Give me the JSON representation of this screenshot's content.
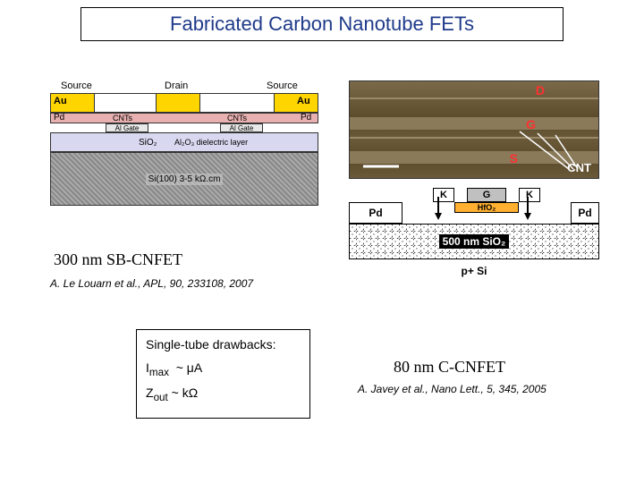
{
  "title": "Fabricated Carbon Nanotube FETs",
  "device1": {
    "labels": {
      "source": "Source",
      "drain": "Drain",
      "au": "Au",
      "cnts": "CNTs",
      "pd": "Pd",
      "algate": "Al Gate",
      "sio2": "SiO₂",
      "al2o3": "Al₂O₃ dielectric layer",
      "si": "Si(100) 3-5 kΩ.cm"
    },
    "colors": {
      "au": "#ffd500",
      "pd": "#e8b0b0",
      "al": "#e8e8e8",
      "sio2": "#d8d8f0",
      "si_hatch_a": "#aaaaaa",
      "si_hatch_b": "#888888"
    },
    "caption": "300 nm SB-CNFET",
    "ref": "A. Le Louarn et al., APL, 90, 233108, 2007"
  },
  "afm": {
    "labels": {
      "d": "D",
      "g": "G",
      "s": "S",
      "cnt": "CNT"
    },
    "label_color": "#ff3030",
    "cnt_color": "#ffffff"
  },
  "device2": {
    "labels": {
      "k": "K",
      "g": "G",
      "hfo2": "HfO₂",
      "pd": "Pd",
      "sio2": "500 nm SiO₂",
      "psi": "p+ Si"
    },
    "colors": {
      "k": "#ffffff",
      "g": "#c0c0c0",
      "hfo2": "#ffb030",
      "pd": "#ffffff",
      "sio2_label_bg": "#000000",
      "sio2_label_fg": "#ffffff"
    },
    "caption": "80 nm C-CNFET",
    "ref": "A. Javey et al., Nano Lett., 5, 345, 2005"
  },
  "drawbacks": {
    "header": "Single-tube drawbacks:",
    "line1_html": "I<sub>max</sub> &nbsp;~ &mu;A",
    "line2_html": "Z<sub>out</sub> ~ k&Omega;"
  }
}
